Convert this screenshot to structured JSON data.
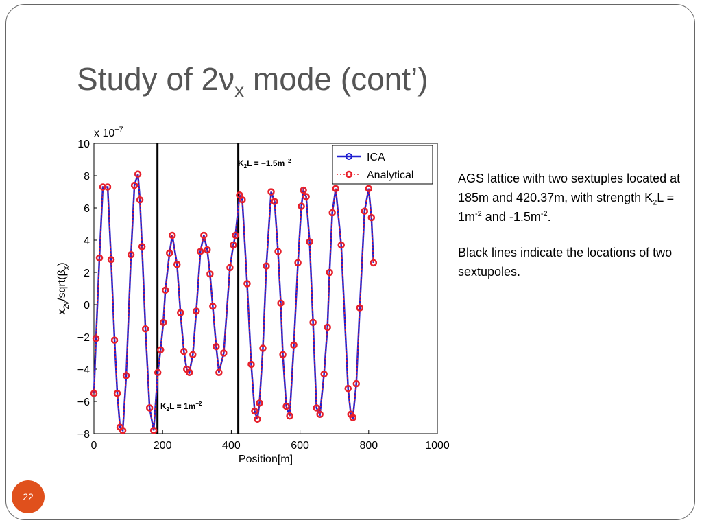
{
  "slide": {
    "title": [
      "Study of 2",
      "ν",
      "x",
      " mode (cont’)"
    ],
    "page": "22",
    "body": [
      [
        "AGS lattice with two sextuples located at 185m and 420.37m, with strength K",
        "2",
        "L = 1m",
        "-2",
        " and -1.5m",
        "-2",
        "."
      ],
      [
        "Black lines indicate the locations of two sextupoles."
      ]
    ]
  },
  "chart_data": {
    "type": "line",
    "xlabel": "Position[m]",
    "ylabel": [
      "x",
      "2ν",
      "/sqrt(β",
      "x",
      ")"
    ],
    "yexponent": [
      "x 10",
      "−7"
    ],
    "x": [
      0,
      6,
      16,
      26,
      40,
      50,
      60,
      68,
      76,
      84,
      94,
      108,
      118,
      128,
      134,
      140,
      150,
      162,
      174,
      186,
      194,
      202,
      208,
      220,
      228,
      242,
      252,
      262,
      270,
      278,
      288,
      298,
      310,
      320,
      330,
      338,
      346,
      356,
      364,
      378,
      396,
      406,
      412,
      424,
      432,
      446,
      458,
      468,
      476,
      482,
      492,
      502,
      516,
      526,
      536,
      544,
      550,
      560,
      570,
      582,
      594,
      604,
      610,
      618,
      628,
      638,
      648,
      658,
      670,
      680,
      686,
      694,
      704,
      720,
      740,
      748,
      754,
      764,
      774,
      788,
      800,
      808,
      814
    ],
    "series": [
      {
        "name": "ICA",
        "color": "#1f1fd0",
        "values": [
          -5.5,
          -2.1,
          2.9,
          7.3,
          7.3,
          2.8,
          -2.2,
          -5.5,
          -7.6,
          -7.8,
          -4.4,
          3.1,
          7.4,
          8.1,
          6.5,
          3.6,
          -1.5,
          -6.4,
          -7.8,
          -4.2,
          -2.8,
          -1.1,
          0.9,
          3.2,
          4.3,
          2.5,
          -0.5,
          -2.9,
          -4.0,
          -4.2,
          -3.1,
          -0.4,
          3.3,
          4.3,
          3.4,
          1.9,
          -0.1,
          -2.6,
          -4.2,
          -3.0,
          2.3,
          3.7,
          4.3,
          6.8,
          6.5,
          1.3,
          -3.7,
          -6.6,
          -7.1,
          -6.1,
          -2.7,
          2.4,
          7.0,
          6.4,
          3.3,
          0.1,
          -3.1,
          -6.3,
          -6.9,
          -2.5,
          2.6,
          6.1,
          7.1,
          6.7,
          3.9,
          -1.1,
          -6.4,
          -6.8,
          -4.3,
          -1.4,
          2.0,
          5.7,
          7.2,
          3.7,
          -5.2,
          -6.8,
          -7.0,
          -4.9,
          -0.2,
          5.8,
          7.2,
          5.4,
          2.6
        ]
      },
      {
        "name": "Analytical",
        "color": "#e8202a",
        "values": [
          -5.5,
          -2.1,
          2.9,
          7.3,
          7.3,
          2.8,
          -2.2,
          -5.5,
          -7.6,
          -7.8,
          -4.4,
          3.1,
          7.4,
          8.1,
          6.5,
          3.6,
          -1.5,
          -6.4,
          -7.8,
          -4.2,
          -2.8,
          -1.1,
          0.9,
          3.2,
          4.3,
          2.5,
          -0.5,
          -2.9,
          -4.0,
          -4.2,
          -3.1,
          -0.4,
          3.3,
          4.3,
          3.4,
          1.9,
          -0.1,
          -2.6,
          -4.2,
          -3.0,
          2.3,
          3.7,
          4.3,
          6.8,
          6.5,
          1.3,
          -3.7,
          -6.6,
          -7.1,
          -6.1,
          -2.7,
          2.4,
          7.0,
          6.4,
          3.3,
          0.1,
          -3.1,
          -6.3,
          -6.9,
          -2.5,
          2.6,
          6.1,
          7.1,
          6.7,
          3.9,
          -1.1,
          -6.4,
          -6.8,
          -4.3,
          -1.4,
          2.0,
          5.7,
          7.2,
          3.7,
          -5.2,
          -6.8,
          -7.0,
          -4.9,
          -0.2,
          5.8,
          7.2,
          5.4,
          2.6
        ]
      }
    ],
    "vlines": [
      185,
      420.37
    ],
    "annotations": [
      [
        "K",
        "2",
        "L = 1m",
        "−2"
      ],
      [
        "K",
        "2",
        "L = −1.5m",
        "−2"
      ]
    ],
    "xlim": [
      0,
      1000
    ],
    "xticks": [
      0,
      200,
      400,
      600,
      800,
      1000
    ],
    "ylim": [
      -8,
      10
    ],
    "yticks": [
      {
        "value": -8,
        "label": "−8"
      },
      {
        "value": -6,
        "label": "−6"
      },
      {
        "value": -4,
        "label": "−4"
      },
      {
        "value": -2,
        "label": "−2"
      },
      0,
      2,
      4,
      6,
      8,
      10
    ],
    "legend": "upper right"
  }
}
